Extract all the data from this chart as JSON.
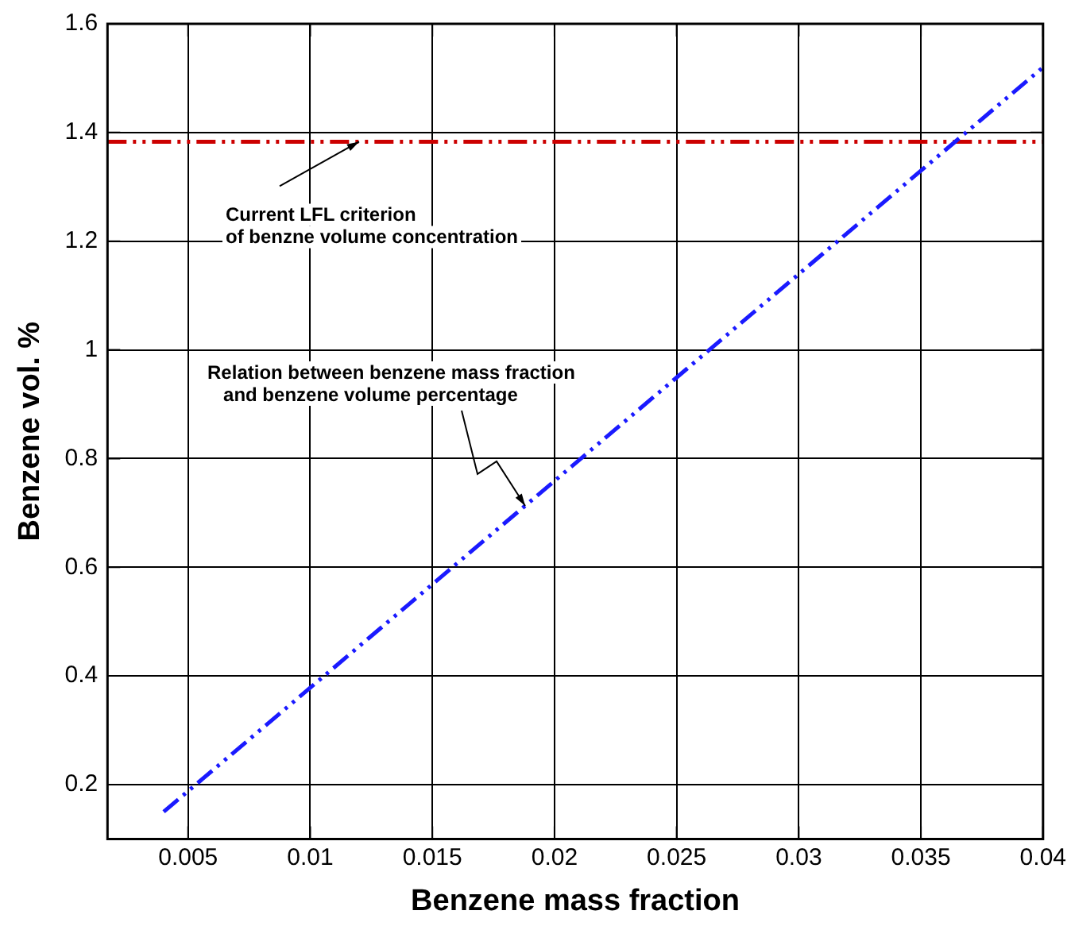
{
  "chart_data": {
    "type": "line",
    "xlabel": "Benzene mass fraction",
    "ylabel": "Benzene vol. %",
    "xlim": [
      0.0017,
      0.04
    ],
    "xticks": [
      0.005,
      0.01,
      0.015,
      0.02,
      0.025,
      0.03,
      0.035,
      0.04
    ],
    "ylim": [
      0.1,
      1.6
    ],
    "yticks": [
      0.2,
      0.4,
      0.6,
      0.8,
      1,
      1.2,
      1.4,
      1.6
    ],
    "series": [
      {
        "color": "#1a1aff",
        "x": [
          0.004,
          0.04
        ],
        "values": [
          0.15,
          1.52
        ]
      }
    ],
    "ref_lines": [
      {
        "axis": "y",
        "value": 1.383,
        "color": "#cc0000",
        "line_style": "dashed"
      }
    ],
    "annotations": [
      {
        "text": "Current LFL criterion\nof benzne volume concentration",
        "x": 0.012,
        "y": 1.383
      },
      {
        "text": "Relation between benzene mass fraction\n   and benzene volume percentage",
        "x": 0.0188,
        "y": 0.713
      }
    ],
    "grid": true,
    "legend": false,
    "line_style": "dashed",
    "marker": "none"
  }
}
